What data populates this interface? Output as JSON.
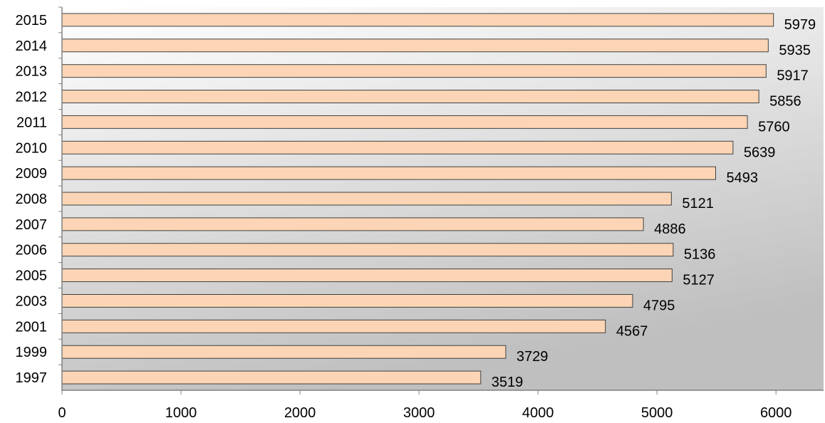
{
  "chart_data": {
    "type": "bar",
    "orientation": "horizontal",
    "title": "",
    "xlabel": "",
    "ylabel": "",
    "categories": [
      "2015",
      "2014",
      "2013",
      "2012",
      "2011",
      "2010",
      "2009",
      "2008",
      "2007",
      "2006",
      "2005",
      "2003",
      "2001",
      "1999",
      "1997"
    ],
    "series": [
      {
        "values": [
          5979,
          5935,
          5917,
          5856,
          5760,
          5639,
          5493,
          5121,
          4886,
          5136,
          5127,
          4795,
          4567,
          3729,
          3519
        ]
      }
    ],
    "xlim": [
      0,
      6400
    ],
    "xticks": [
      "0",
      "1000",
      "2000",
      "3000",
      "4000",
      "5000",
      "6000"
    ],
    "grid": false,
    "legend": "none",
    "colors": {
      "bar_fill": "#fbd5b5",
      "bar_stroke": "#404040",
      "background_top": "#ffffff",
      "background_bottom": "#bfbfbf",
      "axis": "#808080"
    }
  }
}
